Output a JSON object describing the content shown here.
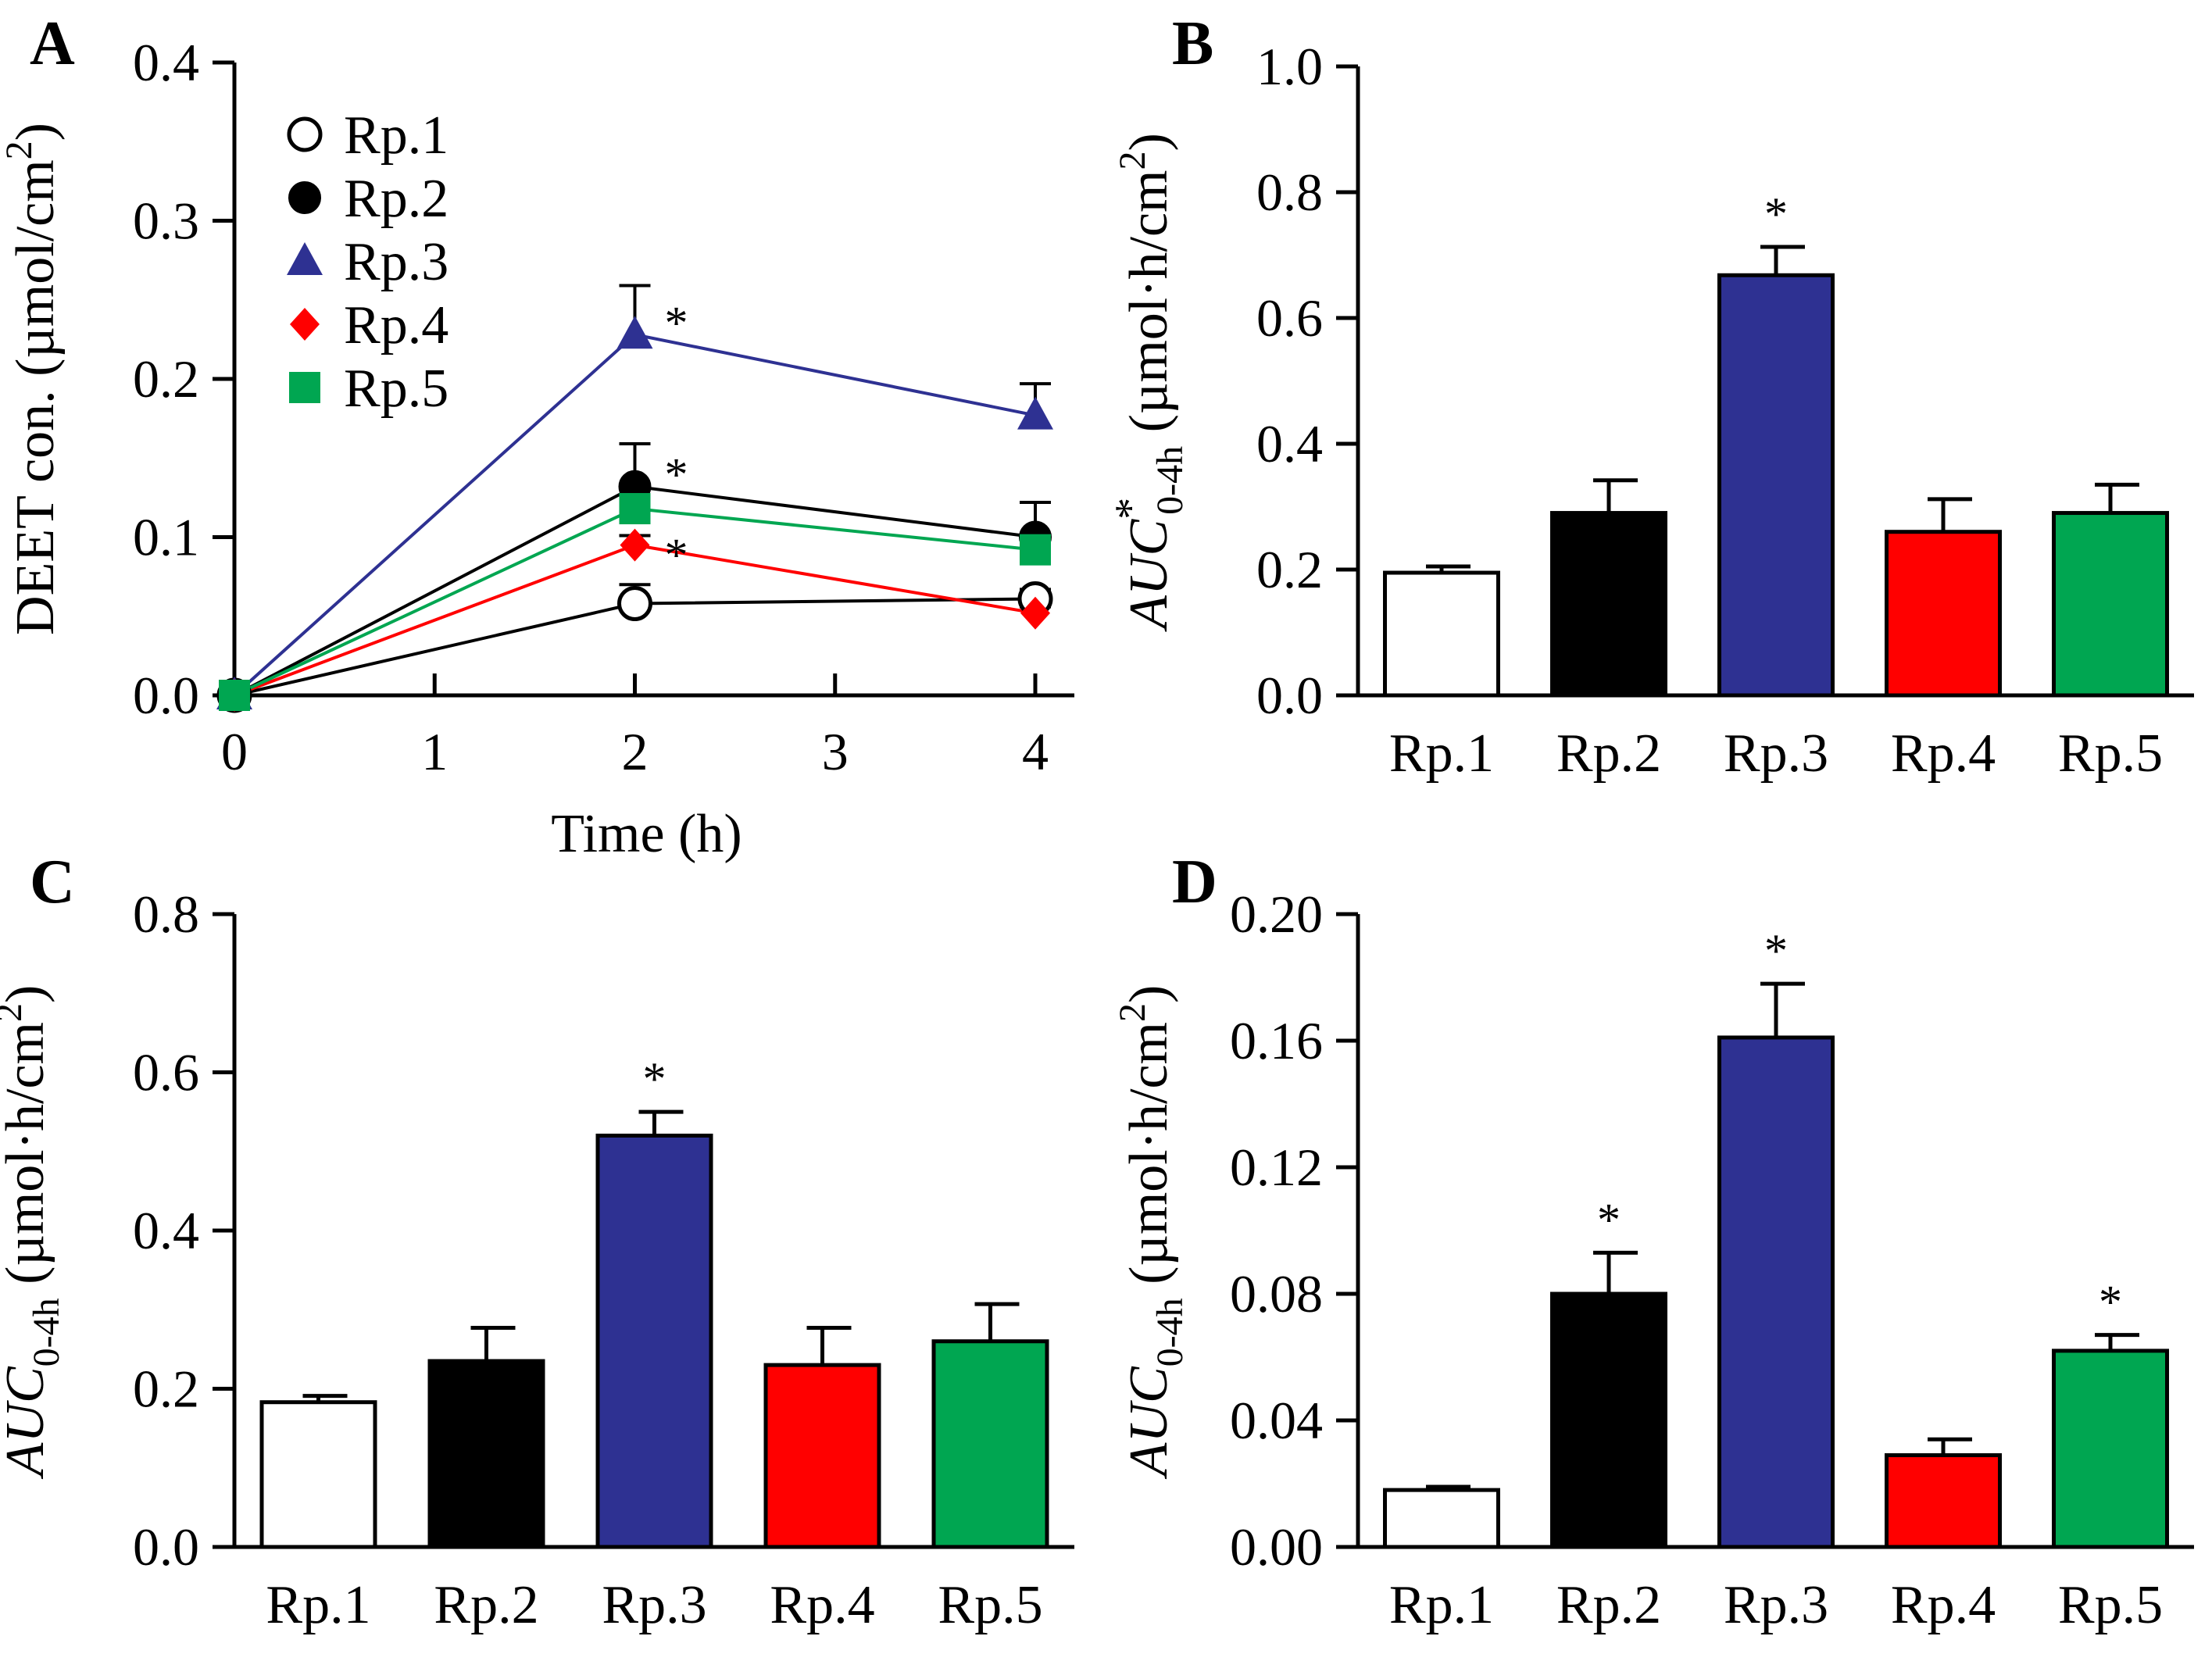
{
  "colors": {
    "Rp.1": "#ffffff",
    "Rp.2": "#000000",
    "Rp.3": "#2e3192",
    "Rp.4": "#ff0000",
    "Rp.5": "#00a651",
    "line_Rp.1": "#000000",
    "line_Rp.2": "#000000",
    "line_Rp.3": "#2e3192",
    "line_Rp.4": "#ff0000",
    "line_Rp.5": "#00a651"
  },
  "chart_data": [
    {
      "panel": "A",
      "type": "line",
      "xlabel": "Time (h)",
      "ylabel": "DEET con. (µmol/cm²)",
      "ylabel_parts": [
        "DEET con. (µmol/cm",
        "2",
        ")"
      ],
      "xlim": [
        0,
        4
      ],
      "ylim": [
        0,
        0.4
      ],
      "xticks": [
        "0",
        "1",
        "2",
        "3",
        "4"
      ],
      "yticks": [
        "0.0",
        "0.1",
        "0.2",
        "0.3",
        "0.4"
      ],
      "star": "*",
      "legend_position": "top-left",
      "series": [
        {
          "name": "Rp.1",
          "marker": "circle-open",
          "x": [
            0,
            2,
            4
          ],
          "y": [
            0.0,
            0.058,
            0.061
          ],
          "err": [
            0,
            0.012,
            0.006
          ],
          "sig": [
            false,
            false,
            false
          ]
        },
        {
          "name": "Rp.2",
          "marker": "circle",
          "x": [
            0,
            2,
            4
          ],
          "y": [
            0.0,
            0.132,
            0.1
          ],
          "err": [
            0,
            0.027,
            0.022
          ],
          "sig": [
            false,
            true,
            false
          ]
        },
        {
          "name": "Rp.3",
          "marker": "triangle",
          "x": [
            0,
            2,
            4
          ],
          "y": [
            0.0,
            0.228,
            0.177
          ],
          "err": [
            0,
            0.031,
            0.02
          ],
          "sig": [
            false,
            true,
            false
          ]
        },
        {
          "name": "Rp.4",
          "marker": "diamond",
          "x": [
            0,
            2,
            4
          ],
          "y": [
            0.0,
            0.095,
            0.052
          ],
          "err": [
            0,
            0.006,
            0.004
          ],
          "sig": [
            false,
            true,
            false
          ]
        },
        {
          "name": "Rp.5",
          "marker": "square",
          "x": [
            0,
            2,
            4
          ],
          "y": [
            0.0,
            0.118,
            0.092
          ],
          "err": [
            0,
            0.012,
            0.01
          ],
          "sig": [
            false,
            false,
            false
          ]
        }
      ]
    },
    {
      "panel": "B",
      "type": "bar",
      "categories": [
        "Rp.1",
        "Rp.2",
        "Rp.3",
        "Rp.4",
        "Rp.5"
      ],
      "values": [
        0.195,
        0.29,
        0.668,
        0.26,
        0.29
      ],
      "errors": [
        0.01,
        0.052,
        0.045,
        0.052,
        0.045
      ],
      "sig": [
        false,
        false,
        true,
        false,
        false
      ],
      "ylim": [
        0,
        1.0
      ],
      "yticks": [
        "0.0",
        "0.2",
        "0.4",
        "0.6",
        "0.8",
        "1.0"
      ],
      "ylabel_parts": {
        "auc": "AUC",
        "star_sup": "*",
        "sub": "0-4h",
        "unit": "(µmol·h/cm",
        "unit_sup": "2",
        "unit_end": ")"
      },
      "star": "*"
    },
    {
      "panel": "C",
      "type": "bar",
      "categories": [
        "Rp.1",
        "Rp.2",
        "Rp.3",
        "Rp.4",
        "Rp.5"
      ],
      "values": [
        0.183,
        0.235,
        0.52,
        0.23,
        0.26
      ],
      "errors": [
        0.008,
        0.042,
        0.03,
        0.047,
        0.047
      ],
      "sig": [
        false,
        false,
        true,
        false,
        false
      ],
      "ylim": [
        0,
        0.8
      ],
      "yticks": [
        "0.0",
        "0.2",
        "0.4",
        "0.6",
        "0.8"
      ],
      "ylabel_parts": {
        "auc": "AUC",
        "star_sup": "",
        "sub": "0-4h",
        "unit": "(µmol·h/cm",
        "unit_sup": "2",
        "unit_end": ")"
      },
      "star": "*"
    },
    {
      "panel": "D",
      "type": "bar",
      "categories": [
        "Rp.1",
        "Rp.2",
        "Rp.3",
        "Rp.4",
        "Rp.5"
      ],
      "values": [
        0.018,
        0.08,
        0.161,
        0.029,
        0.062
      ],
      "errors": [
        0.001,
        0.013,
        0.017,
        0.005,
        0.005
      ],
      "sig": [
        false,
        true,
        true,
        false,
        true
      ],
      "ylim": [
        0,
        0.2
      ],
      "yticks": [
        "0.00",
        "0.04",
        "0.08",
        "0.12",
        "0.16",
        "0.20"
      ],
      "ylabel_parts": {
        "auc": "AUC",
        "star_sup": "",
        "sub": "0-4h",
        "unit": "(µmol·h/cm",
        "unit_sup": "2",
        "unit_end": ")"
      },
      "star": "*"
    }
  ]
}
